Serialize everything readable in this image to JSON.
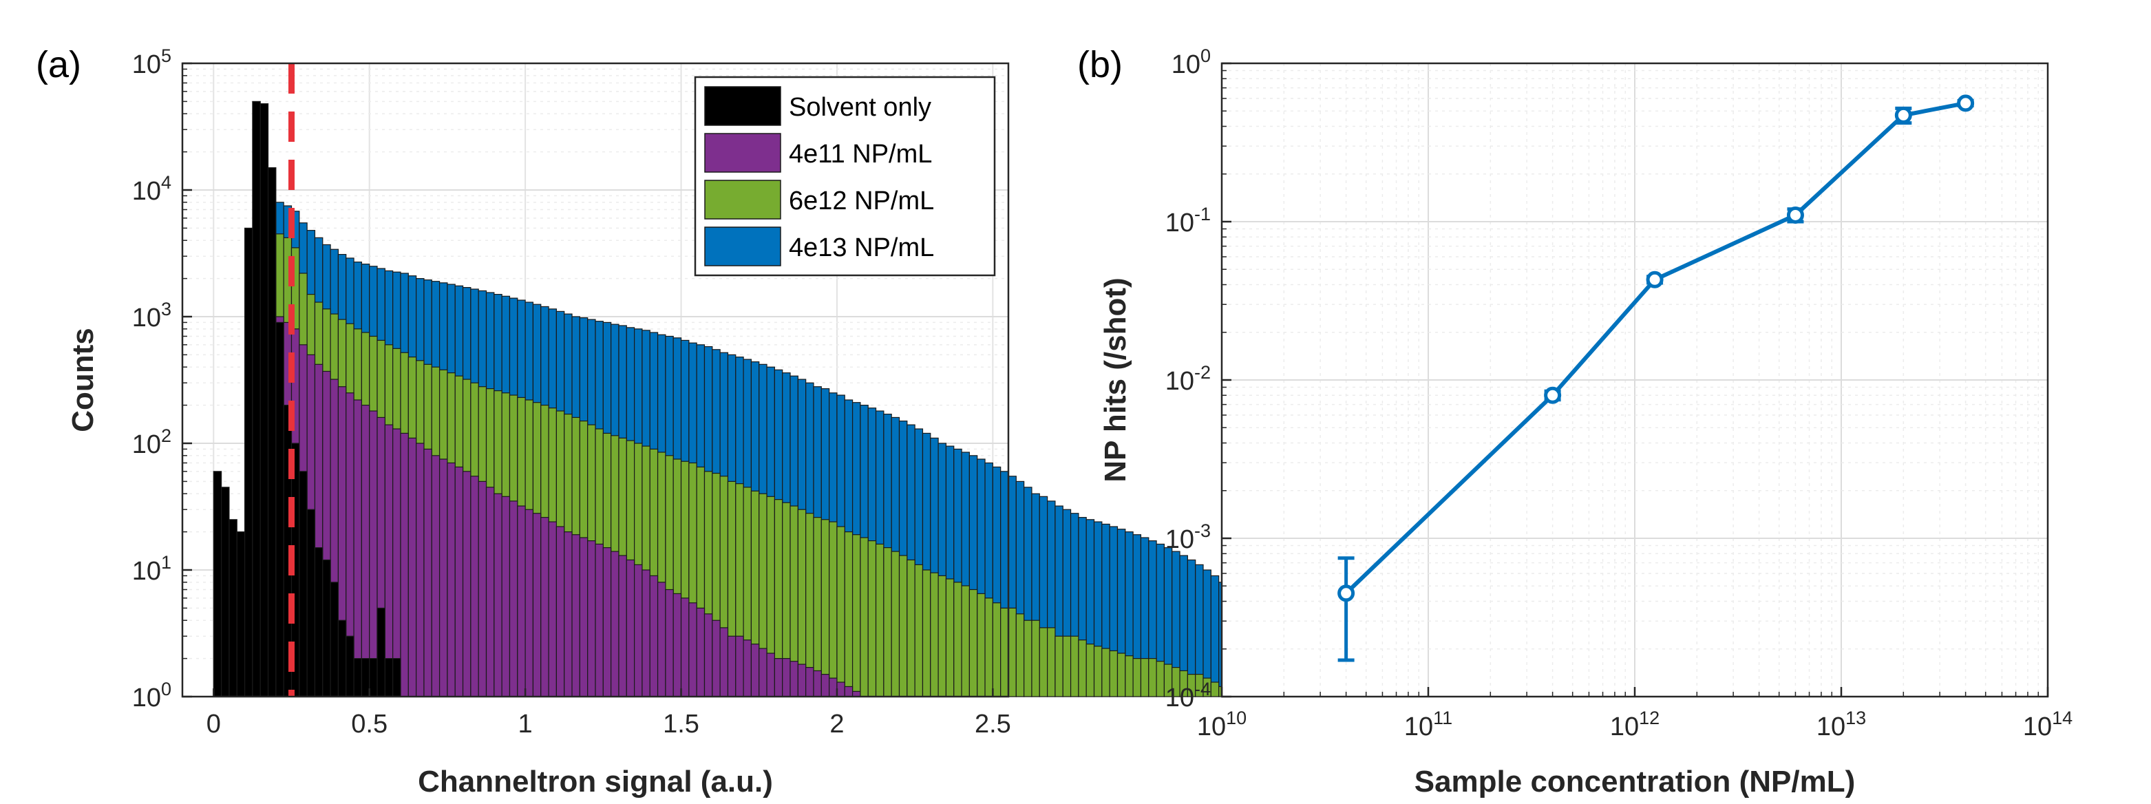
{
  "chart_data": [
    {
      "type": "bar",
      "panel_label": "(a)",
      "xlabel": "Channeltron signal (a.u.)",
      "ylabel": "Counts",
      "xlim": [
        -0.1,
        2.55
      ],
      "ylim": [
        1,
        100000
      ],
      "yscale": "log",
      "grid": true,
      "legend_placement": "top-right",
      "bin_width": 0.025,
      "bin_start": 0.0,
      "x_ticks": [
        "0",
        "0.5",
        "1",
        "1.5",
        "2",
        "2.5"
      ],
      "y_ticks": [
        "10^0",
        "10^1",
        "10^2",
        "10^3",
        "10^4",
        "10^5"
      ],
      "threshold_line": {
        "x": 0.25,
        "color": "#e8333a"
      },
      "series": [
        {
          "name": "4e13 NP/mL",
          "color": "#0072bd",
          "values": [
            0,
            0,
            0,
            0,
            0,
            0,
            0,
            0,
            8000,
            7500,
            6800,
            5500,
            4800,
            4200,
            3700,
            3400,
            3100,
            2900,
            2700,
            2600,
            2500,
            2400,
            2300,
            2250,
            2200,
            2100,
            2000,
            1950,
            1900,
            1850,
            1800,
            1750,
            1700,
            1650,
            1600,
            1550,
            1500,
            1450,
            1400,
            1350,
            1300,
            1250,
            1200,
            1150,
            1100,
            1050,
            1000,
            980,
            950,
            920,
            900,
            870,
            850,
            820,
            800,
            780,
            750,
            720,
            700,
            680,
            650,
            620,
            600,
            580,
            550,
            520,
            500,
            480,
            460,
            440,
            420,
            400,
            380,
            360,
            340,
            320,
            300,
            280,
            270,
            250,
            240,
            220,
            210,
            200,
            190,
            180,
            170,
            160,
            150,
            140,
            130,
            120,
            110,
            100,
            95,
            90,
            85,
            80,
            75,
            70,
            65,
            60,
            55,
            50,
            45,
            40,
            38,
            35,
            32,
            30,
            28,
            26,
            25,
            24,
            23,
            22,
            21,
            20,
            19,
            18,
            17,
            16,
            15,
            14,
            13,
            12,
            11,
            10,
            9,
            8,
            7,
            6,
            5,
            4,
            3,
            2,
            1,
            200
          ]
        },
        {
          "name": "6e12 NP/mL",
          "color": "#77ac30",
          "values": [
            0,
            0,
            0,
            0,
            0,
            0,
            0,
            0,
            4500,
            4200,
            3500,
            2200,
            1500,
            1300,
            1150,
            1050,
            950,
            880,
            800,
            750,
            700,
            650,
            600,
            560,
            520,
            480,
            450,
            420,
            400,
            380,
            360,
            340,
            320,
            300,
            280,
            270,
            260,
            250,
            240,
            230,
            220,
            210,
            200,
            190,
            180,
            170,
            160,
            150,
            140,
            130,
            120,
            115,
            110,
            105,
            100,
            95,
            90,
            85,
            80,
            75,
            72,
            70,
            65,
            60,
            58,
            55,
            50,
            48,
            45,
            42,
            40,
            38,
            36,
            34,
            32,
            30,
            28,
            26,
            25,
            24,
            22,
            20,
            19,
            18,
            17,
            16,
            15,
            14,
            13,
            12,
            11,
            10,
            9.5,
            9,
            8.5,
            8,
            7.5,
            7,
            6.5,
            6,
            5.5,
            5,
            5,
            4.5,
            4,
            4,
            3.5,
            3.5,
            3,
            3,
            3,
            2.8,
            2.6,
            2.5,
            2.4,
            2.3,
            2.2,
            2.1,
            2,
            2,
            2,
            1.9,
            1.8,
            1.7,
            1.6,
            1.5,
            1.5,
            1.4,
            1.3,
            1.2,
            1.2,
            1.1,
            1,
            1,
            1,
            1,
            1,
            1,
            1,
            1,
            1,
            1,
            3
          ]
        },
        {
          "name": "4e11 NP/mL",
          "color": "#7e2f8e",
          "values": [
            0,
            0,
            0,
            0,
            0,
            0,
            0,
            0,
            1000,
            900,
            800,
            600,
            500,
            420,
            370,
            320,
            280,
            250,
            220,
            200,
            180,
            160,
            140,
            130,
            120,
            110,
            100,
            90,
            80,
            75,
            70,
            65,
            60,
            55,
            50,
            45,
            40,
            38,
            35,
            32,
            30,
            28,
            26,
            24,
            22,
            20,
            19,
            18,
            17,
            16,
            15,
            14,
            13,
            12,
            11,
            10,
            9,
            8,
            7,
            6.5,
            6,
            5.5,
            5,
            4.5,
            4,
            3.5,
            3,
            3,
            2.8,
            2.6,
            2.4,
            2.2,
            2,
            2,
            1.9,
            1.8,
            1.7,
            1.6,
            1.5,
            1.4,
            1.3,
            1.2,
            1.1,
            1,
            1,
            1,
            1,
            1,
            1,
            1,
            1,
            1,
            1,
            1,
            1,
            1,
            1,
            1,
            1,
            1,
            1,
            1,
            1,
            1,
            1,
            1,
            1,
            1,
            1,
            1,
            1,
            1,
            1,
            1,
            1,
            1,
            1,
            1,
            1,
            1,
            1,
            1,
            1,
            1,
            1,
            1,
            1,
            1,
            1,
            1,
            1,
            1,
            1,
            1,
            1,
            1,
            1,
            1,
            1,
            1,
            1,
            1,
            1,
            1,
            1,
            1,
            1,
            1,
            1,
            1,
            1
          ]
        },
        {
          "name": "Solvent only",
          "color": "#000000",
          "values": [
            60,
            45,
            25,
            20,
            5000,
            50000,
            48000,
            15000,
            900,
            200,
            100,
            60,
            30,
            15,
            12,
            8,
            4,
            3,
            2,
            2,
            2,
            5,
            2,
            2,
            1,
            1,
            1,
            1,
            1,
            1,
            1,
            1,
            1,
            1,
            1,
            1,
            1,
            1,
            1,
            1,
            1,
            1,
            1,
            1,
            1,
            1,
            1,
            1,
            1,
            1,
            1,
            1,
            1,
            1,
            1,
            1,
            1,
            1,
            1,
            1,
            1,
            1,
            1,
            1,
            1,
            1,
            1,
            1,
            1,
            1,
            1,
            1,
            1,
            1,
            1,
            1,
            1,
            1,
            1,
            1,
            1,
            1,
            1,
            1,
            1,
            1,
            1,
            1,
            1,
            1,
            1,
            1,
            1,
            1,
            1,
            1,
            1,
            1,
            1,
            1,
            1,
            1,
            1,
            1,
            1,
            1,
            1,
            1,
            1,
            1,
            1,
            1,
            1,
            1,
            1,
            1,
            1,
            1,
            1,
            1,
            1,
            1,
            1,
            1,
            1,
            1,
            1,
            1,
            1,
            1,
            1,
            1,
            1,
            1,
            1,
            1,
            1,
            1,
            1,
            1,
            1,
            1,
            1,
            1,
            1,
            1
          ]
        }
      ]
    },
    {
      "type": "line",
      "panel_label": "(b)",
      "xlabel": "Sample concentration (NP/mL)",
      "ylabel": "NP hits (/shot)",
      "xscale": "log",
      "yscale": "log",
      "xlim": [
        10000000000.0,
        100000000000000.0
      ],
      "ylim": [
        0.0001,
        1
      ],
      "grid": true,
      "x_ticks": [
        "10^10",
        "10^11",
        "10^12",
        "10^13",
        "10^14"
      ],
      "y_ticks": [
        "10^-4",
        "10^-3",
        "10^-2",
        "10^-1",
        "10^0"
      ],
      "color": "#0072bd",
      "x": [
        40000000000.0,
        400000000000.0,
        1250000000000.0,
        6000000000000.0,
        20000000000000.0,
        40000000000000.0
      ],
      "y": [
        0.00045,
        0.008,
        0.043,
        0.11,
        0.47,
        0.56
      ],
      "y_err_low": [
        0.00017,
        0.0075,
        0.041,
        0.1,
        0.42,
        0.54
      ],
      "y_err_high": [
        0.00075,
        0.0085,
        0.045,
        0.12,
        0.52,
        0.58
      ]
    }
  ]
}
